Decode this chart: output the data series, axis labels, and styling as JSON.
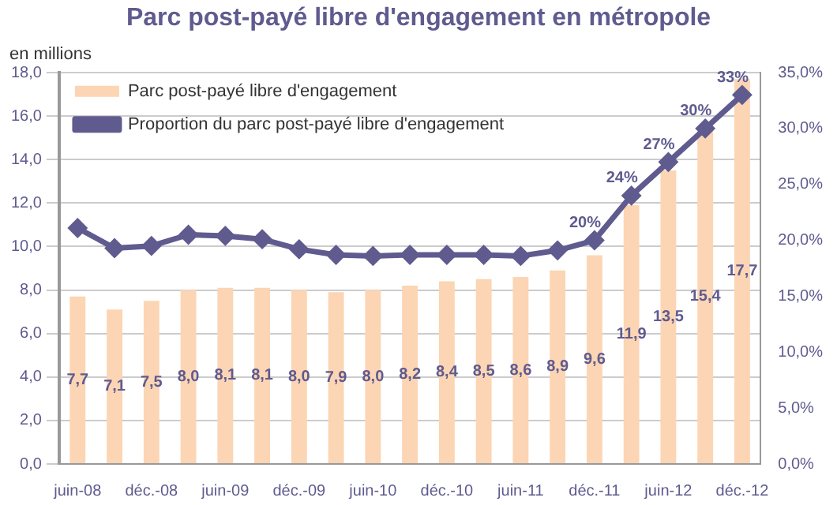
{
  "chart_data": {
    "type": "bar",
    "title": "Parc post-payé libre d'engagement en métropole",
    "ylabel": "en millions",
    "categories": [
      "juin-08",
      null,
      "déc.-08",
      null,
      "juin-09",
      null,
      "déc.-09",
      null,
      "juin-10",
      null,
      "déc.-10",
      null,
      "juin-11",
      null,
      "déc.-11",
      null,
      "juin-12",
      null,
      "déc.-12"
    ],
    "series": [
      {
        "name": "Parc post-payé libre d'engagement",
        "color": "#fcd5b4",
        "values": [
          7.7,
          7.1,
          7.5,
          8.0,
          8.1,
          8.1,
          8.0,
          7.9,
          8.0,
          8.2,
          8.4,
          8.5,
          8.6,
          8.9,
          9.6,
          11.9,
          13.5,
          15.4,
          17.7
        ],
        "value_labels": [
          "7,7",
          "7,1",
          "7,5",
          "8,0",
          "8,1",
          "8,1",
          "8,0",
          "7,9",
          "8,0",
          "8,2",
          "8,4",
          "8,5",
          "8,6",
          "8,9",
          "9,6",
          "11,9",
          "13,5",
          "15,4",
          "17,7"
        ]
      },
      {
        "name": "Proportion du parc post-payé libre d'engagement",
        "type": "line",
        "axis": "y2",
        "color": "#5f5b8f",
        "values": [
          21.1,
          19.3,
          19.5,
          20.5,
          20.4,
          20.1,
          19.2,
          18.7,
          18.6,
          18.7,
          18.7,
          18.7,
          18.6,
          19.1,
          20,
          24,
          27,
          30,
          33
        ],
        "value_labels": [
          null,
          null,
          null,
          null,
          null,
          null,
          null,
          null,
          null,
          null,
          null,
          null,
          null,
          null,
          "20%",
          "24%",
          "27%",
          "30%",
          "33%"
        ]
      }
    ],
    "ylim": [
      0,
      18
    ],
    "yticks": [
      {
        "value": 0,
        "label": "0,0"
      },
      {
        "value": 2,
        "label": "2,0"
      },
      {
        "value": 4,
        "label": "4,0"
      },
      {
        "value": 6,
        "label": "6,0"
      },
      {
        "value": 8,
        "label": "8,0"
      },
      {
        "value": 10,
        "label": "10,0"
      },
      {
        "value": 12,
        "label": "12,0"
      },
      {
        "value": 14,
        "label": "14,0"
      },
      {
        "value": 16,
        "label": "16,0"
      },
      {
        "value": 18,
        "label": "18,0"
      }
    ],
    "y2lim": [
      0,
      35
    ],
    "y2ticks": [
      {
        "value": 0,
        "label": "0,0%"
      },
      {
        "value": 5,
        "label": "5,0%"
      },
      {
        "value": 10,
        "label": "10,0%"
      },
      {
        "value": 15,
        "label": "15,0%"
      },
      {
        "value": 20,
        "label": "20,0%"
      },
      {
        "value": 25,
        "label": "25,0%"
      },
      {
        "value": 30,
        "label": "30,0%"
      },
      {
        "value": 35,
        "label": "35,0%"
      }
    ],
    "grid": "y",
    "legend": "top left",
    "marker": "diamond",
    "line_style": "solid"
  }
}
